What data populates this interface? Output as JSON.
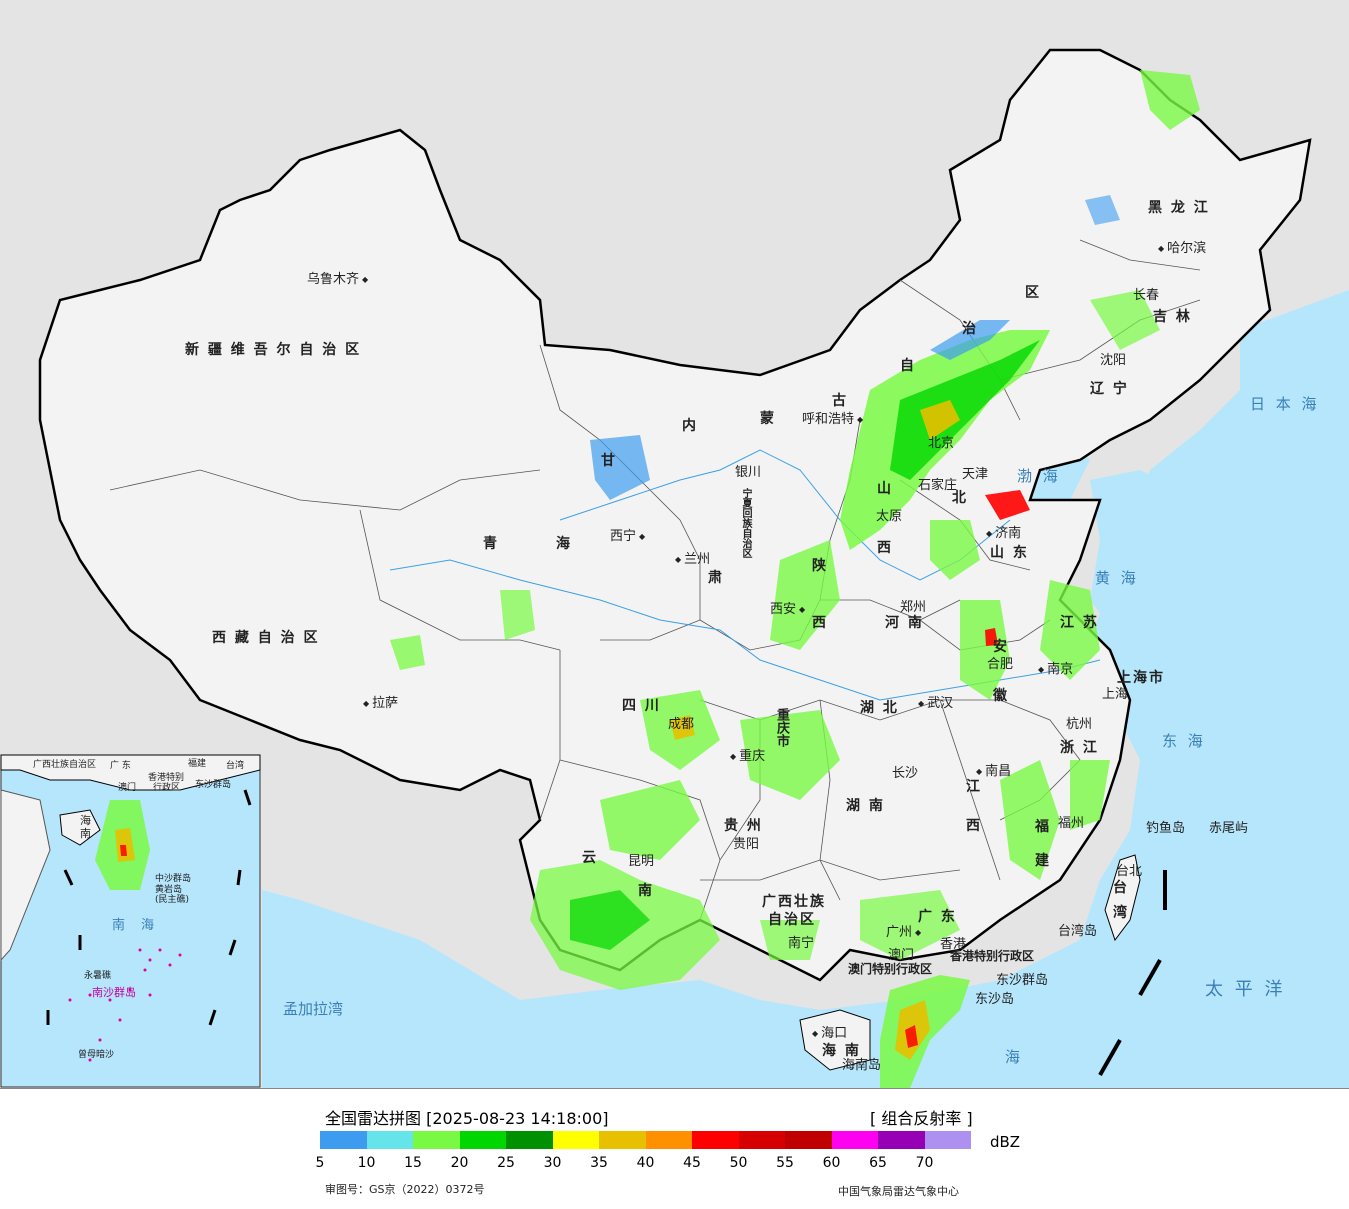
{
  "legend": {
    "title": "全国雷达拼图 [2025-08-23 14:18:00]",
    "product": "[ 组合反射率 ]",
    "unit": "dBZ",
    "ticks": [
      "5",
      "10",
      "15",
      "20",
      "25",
      "30",
      "35",
      "40",
      "45",
      "50",
      "55",
      "60",
      "65",
      "70"
    ],
    "colors": [
      "#3d9cf0",
      "#65e5e9",
      "#79f943",
      "#00d700",
      "#009100",
      "#ffff00",
      "#e7c000",
      "#ff9000",
      "#ff0000",
      "#d60000",
      "#c00000",
      "#ff00f0",
      "#9600b4",
      "#ad90f0"
    ],
    "approval_number": "审图号：GS京（2022）0372号",
    "agency": "中国气象局雷达气象中心"
  },
  "regions": {
    "xinjiang": "新 疆 维 吾 尔 自 治 区",
    "tibet": "西 藏 自 治 区",
    "qinghai_1": "青",
    "qinghai_2": "海",
    "gansu_1": "甘",
    "gansu_2": "肃",
    "nm_1": "内",
    "nm_2": "蒙",
    "nm_3": "古",
    "nm_4": "自",
    "nm_5": "治",
    "nm_6": "区",
    "hlj": "黑 龙 江",
    "jilin": "吉 林",
    "liaoning": "辽 宁",
    "ningxia": "宁夏回族自治区",
    "shaanxi_1": "陕",
    "shaanxi_2": "西",
    "shanxi_1": "山",
    "shanxi_2": "西",
    "hebei": "北",
    "shandong": "山 东",
    "henan": "河 南",
    "jiangsu": "江 苏",
    "anhui_1": "安",
    "anhui_2": "徽",
    "sichuan": "四 川",
    "chongqing": "重庆市",
    "hubei": "湖 北",
    "hunan": "湖 南",
    "jiangxi_1": "江",
    "jiangxi_2": "西",
    "zhejiang": "浙 江",
    "fujian_1": "福",
    "fujian_2": "建",
    "guizhou": "贵 州",
    "yunnan_1": "云",
    "yunnan_2": "南",
    "guangxi_1": "广西壮族",
    "guangxi_2": "自治区",
    "guangdong": "广 东",
    "hainan": "海 南",
    "taiwan_1": "台",
    "taiwan_2": "湾",
    "shanghai": "上海市",
    "hk": "香港特别行政区",
    "macao": "澳门特别行政区"
  },
  "cities": {
    "urumqi": "乌鲁木齐",
    "lhasa": "拉萨",
    "xining": "西宁",
    "lanzhou": "兰州",
    "yinchuan": "银川",
    "hohhot": "呼和浩特",
    "beijing": "北京",
    "tianjin": "天津",
    "shijiazhuang": "石家庄",
    "taiyuan": "太原",
    "jinan": "济南",
    "xian": "西安",
    "zhengzhou": "郑州",
    "hefei": "合肥",
    "nanjing": "南京",
    "shanghai": "上海",
    "hangzhou": "杭州",
    "wuhan": "武汉",
    "changsha": "长沙",
    "nanchang": "南昌",
    "fuzhou": "福州",
    "taipei": "台北",
    "chengdu": "成都",
    "chongqing": "重庆",
    "guiyang": "贵阳",
    "kunming": "昆明",
    "nanning": "南宁",
    "guangzhou": "广州",
    "hongkong": "香港",
    "macau": "澳门",
    "haikou": "海口",
    "harbin": "哈尔滨",
    "changchun": "长春",
    "shenyang": "沈阳"
  },
  "islands": {
    "diaoyu": "钓鱼岛",
    "chiwei": "赤尾屿",
    "dongsha_islands": "东沙群岛",
    "dongsha": "东沙岛",
    "taiwan_island": "台湾岛",
    "hainan_island": "海南岛"
  },
  "seas": {
    "japan_sea": "日 本 海",
    "bohai": "渤 海",
    "yellow_sea": "黄 海",
    "east_sea": "东 海",
    "pacific": "太 平 洋",
    "south_sea": "海",
    "bengal": "孟加拉湾"
  },
  "inset": {
    "south_sea_1": "南",
    "south_sea_2": "海",
    "hainan_1": "海",
    "hainan_2": "南",
    "guangxi": "广西壮族自治区",
    "guangdong": "广 东",
    "fujian": "福建",
    "taiwan": "台湾",
    "hk": "香港特别",
    "hk2": "行政区",
    "macao": "澳门",
    "dongsha": "东沙群岛",
    "zhongsha": "中沙群岛",
    "huangyan": "黄岩岛",
    "minzhu": "(民主礁)",
    "yongshu": "永暑礁",
    "nansha": "南沙群岛",
    "zengmu": "曾母暗沙"
  }
}
